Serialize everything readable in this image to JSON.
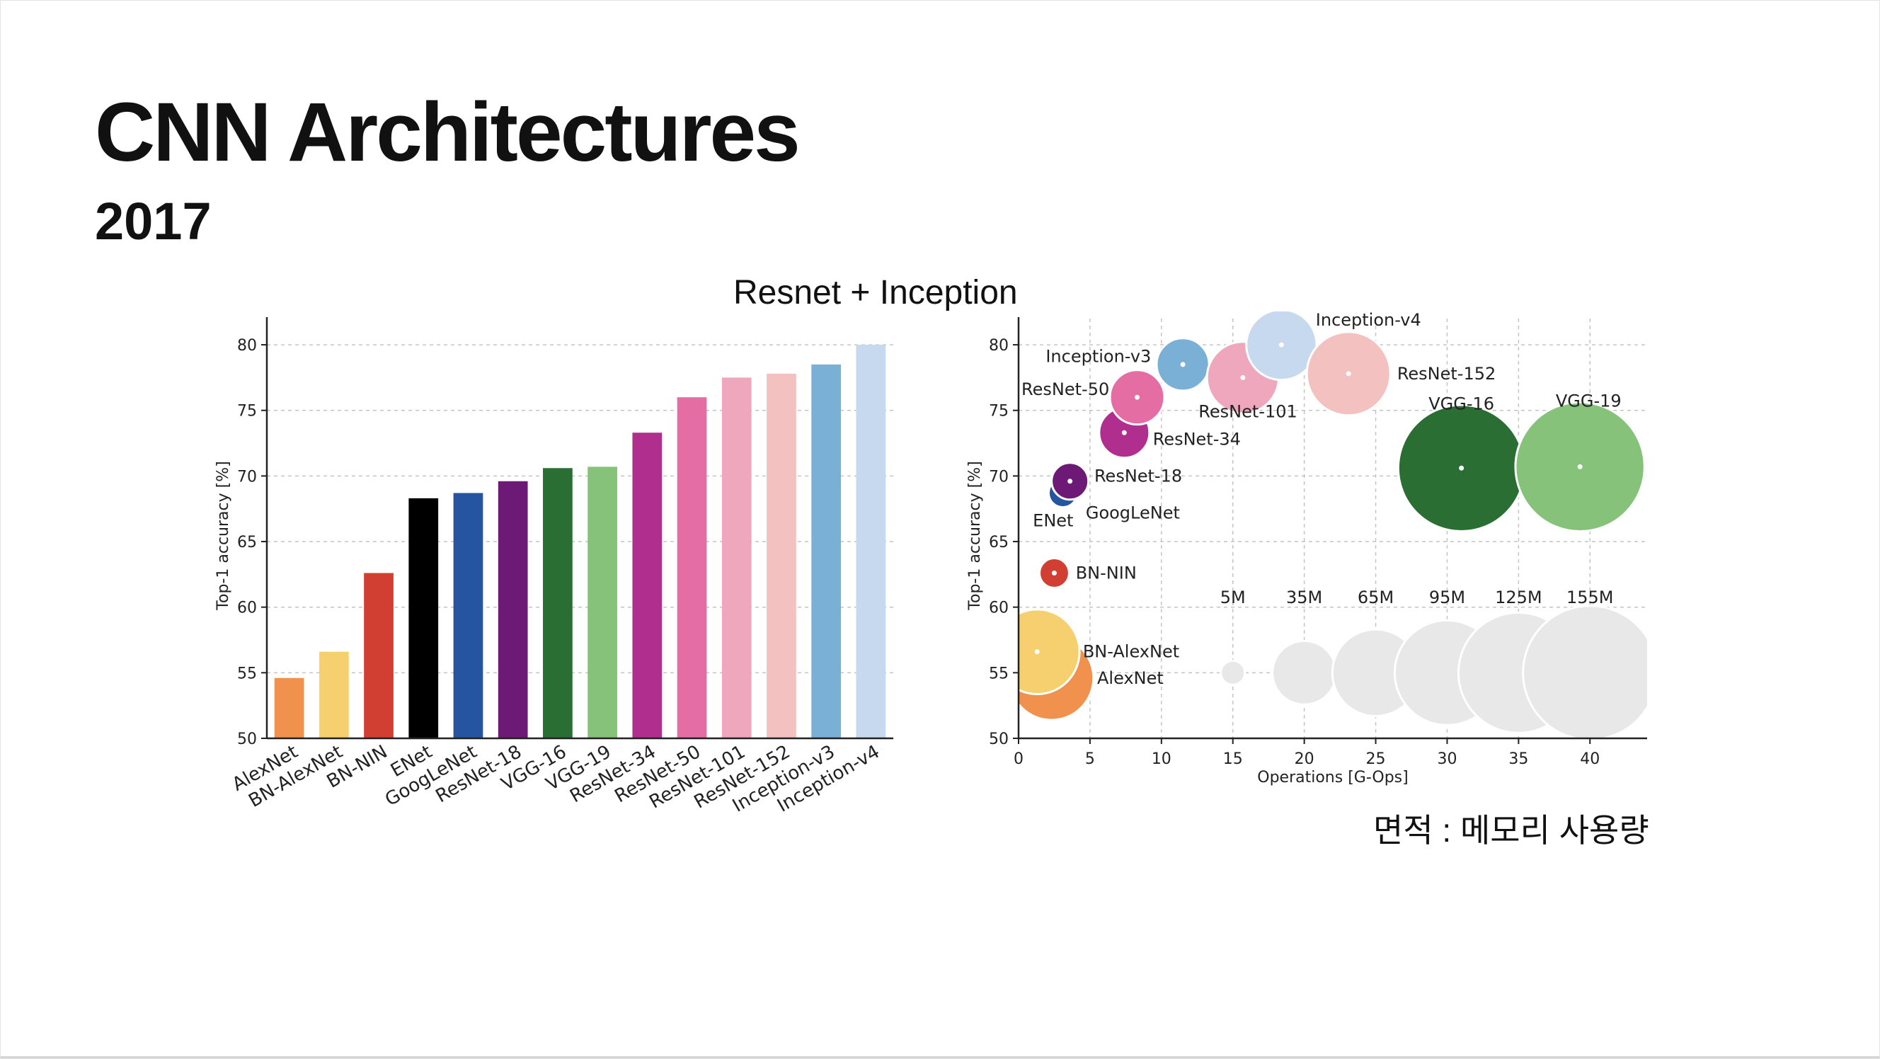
{
  "slide": {
    "title": "CNN Architectures",
    "subtitle": "2017",
    "caption": "Resnet + Inception",
    "memory_note": "면적 : 메모리 사용량"
  },
  "chart_data": [
    {
      "type": "bar",
      "ylabel": "Top-1 accuracy [%]",
      "ylim": [
        50,
        82
      ],
      "yticks": [
        50,
        55,
        60,
        65,
        70,
        75,
        80
      ],
      "grid": true,
      "categories": [
        "AlexNet",
        "BN-AlexNet",
        "BN-NIN",
        "ENet",
        "GoogLeNet",
        "ResNet-18",
        "VGG-16",
        "VGG-19",
        "ResNet-34",
        "ResNet-50",
        "ResNet-101",
        "ResNet-152",
        "Inception-v3",
        "Inception-v4"
      ],
      "values": [
        54.6,
        56.6,
        62.6,
        68.3,
        68.7,
        69.6,
        70.6,
        70.7,
        73.3,
        76.0,
        77.5,
        77.8,
        78.5,
        80.0
      ],
      "colors": [
        "#f0924e",
        "#f6cf6e",
        "#d13f33",
        "#000000",
        "#2554a0",
        "#6c1a76",
        "#2b6e34",
        "#86c279",
        "#b02e8e",
        "#e46da3",
        "#eea7bd",
        "#f3c1c0",
        "#7aafd6",
        "#c6d9ee"
      ]
    },
    {
      "type": "scatter",
      "xlabel": "Operations [G-Ops]",
      "ylabel": "Top-1 accuracy [%]",
      "xlim": [
        0,
        44
      ],
      "ylim": [
        50,
        82
      ],
      "xticks": [
        0,
        5,
        10,
        15,
        20,
        25,
        30,
        35,
        40
      ],
      "yticks": [
        50,
        55,
        60,
        65,
        70,
        75,
        80
      ],
      "grid": true,
      "size_encoding": "memory",
      "points": [
        {
          "name": "AlexNet",
          "x": 2.3,
          "y": 54.6,
          "params": 61,
          "color": "#f0924e"
        },
        {
          "name": "BN-AlexNet",
          "x": 1.3,
          "y": 56.6,
          "params": 62,
          "color": "#f6cf6e"
        },
        {
          "name": "BN-NIN",
          "x": 2.5,
          "y": 62.6,
          "params": 7.6,
          "color": "#d13f33"
        },
        {
          "name": "ENet",
          "x": 1.6,
          "y": 68.3,
          "params": 0.4,
          "color": "#000000"
        },
        {
          "name": "GoogLeNet",
          "x": 3.1,
          "y": 68.7,
          "params": 7,
          "color": "#2554a0"
        },
        {
          "name": "ResNet-18",
          "x": 3.6,
          "y": 69.6,
          "params": 11.7,
          "color": "#6c1a76"
        },
        {
          "name": "ResNet-34",
          "x": 7.4,
          "y": 73.3,
          "params": 21.8,
          "color": "#b02e8e"
        },
        {
          "name": "ResNet-50",
          "x": 8.3,
          "y": 76.0,
          "params": 25.6,
          "color": "#e46da3"
        },
        {
          "name": "Inception-v3",
          "x": 11.5,
          "y": 78.5,
          "params": 23.8,
          "color": "#7aafd6"
        },
        {
          "name": "ResNet-101",
          "x": 15.7,
          "y": 77.5,
          "params": 44.5,
          "color": "#eea7bd"
        },
        {
          "name": "Inception-v4",
          "x": 18.4,
          "y": 80.0,
          "params": 42.7,
          "color": "#c6d9ee"
        },
        {
          "name": "ResNet-152",
          "x": 23.1,
          "y": 77.8,
          "params": 60.2,
          "color": "#f3c1c0"
        },
        {
          "name": "VGG-16",
          "x": 31.0,
          "y": 70.6,
          "params": 138,
          "color": "#2b6e34"
        },
        {
          "name": "VGG-19",
          "x": 39.3,
          "y": 70.7,
          "params": 144,
          "color": "#86c279"
        }
      ],
      "size_reference": {
        "y": 55,
        "color": "#e8e8e8",
        "items": [
          {
            "label": "5M",
            "x": 15,
            "params": 5
          },
          {
            "label": "35M",
            "x": 20,
            "params": 35
          },
          {
            "label": "65M",
            "x": 25,
            "params": 65
          },
          {
            "label": "95M",
            "x": 30,
            "params": 95
          },
          {
            "label": "125M",
            "x": 35,
            "params": 125
          },
          {
            "label": "155M",
            "x": 40,
            "params": 155
          }
        ]
      }
    }
  ]
}
